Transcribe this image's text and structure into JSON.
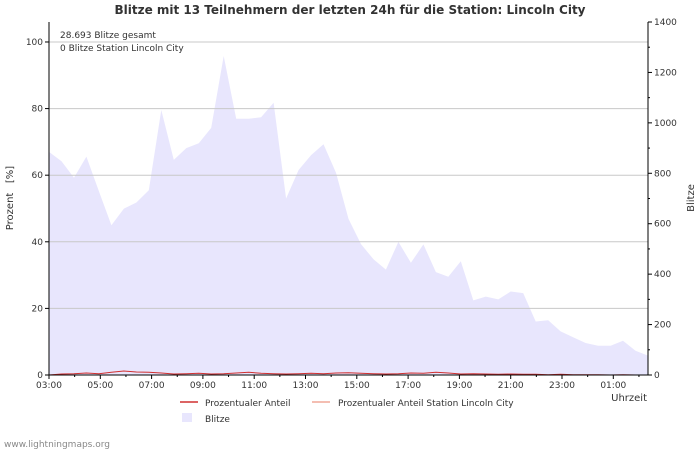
{
  "chart_data": {
    "type": "area",
    "title": "Blitze mit 13 Teilnehmern der letzten 24h für die Station: Lincoln City",
    "annotations": [
      "28.693 Blitze gesamt",
      "0 Blitze Station Lincoln City"
    ],
    "ylabel_left": "Prozent   [%]",
    "ylabel_right": "Blitze",
    "xlabel": "Uhrzeit",
    "ylim_left": [
      0,
      106
    ],
    "ylim_right": [
      0,
      1400
    ],
    "left_ticks": [
      "0",
      "20",
      "40",
      "60",
      "80",
      "100"
    ],
    "right_ticks": [
      "0",
      "200",
      "400",
      "600",
      "800",
      "1000",
      "1200",
      "1400"
    ],
    "x_ticks": [
      "03:00",
      "05:00",
      "07:00",
      "09:00",
      "11:00",
      "13:00",
      "15:00",
      "17:00",
      "19:00",
      "21:00",
      "23:00",
      "01:00"
    ],
    "x_hours_span": 23.67,
    "legend": [
      "Prozentualer Anteil",
      "Prozentualer Anteil Station Lincoln City",
      "Blitze"
    ],
    "colors": {
      "blitze_fill": "#e8e6fd",
      "anteil_line": "#d03030",
      "station_line": "#f0a898",
      "grid": "#c8c8c8",
      "axis": "#000000",
      "text": "#333333"
    },
    "series": [
      {
        "name": "Blitze",
        "axis": "right",
        "values": [
          885,
          848,
          782,
          866,
          729,
          594,
          660,
          684,
          733,
          1051,
          853,
          900,
          919,
          980,
          1265,
          1016,
          1016,
          1022,
          1080,
          700,
          813,
          872,
          915,
          802,
          619,
          519,
          459,
          418,
          528,
          445,
          518,
          408,
          390,
          451,
          296,
          311,
          300,
          331,
          325,
          212,
          217,
          173,
          150,
          127,
          116,
          116,
          136,
          96,
          77
        ]
      },
      {
        "name": "Prozentualer Anteil",
        "axis": "left",
        "values": [
          0,
          0.3,
          0.4,
          0.6,
          0.4,
          0.8,
          1.2,
          0.9,
          0.8,
          0.6,
          0.3,
          0.4,
          0.5,
          0.3,
          0.4,
          0.6,
          0.8,
          0.5,
          0.4,
          0.3,
          0.4,
          0.5,
          0.4,
          0.6,
          0.7,
          0.5,
          0.4,
          0.3,
          0.4,
          0.6,
          0.5,
          0.8,
          0.6,
          0.3,
          0.4,
          0.3,
          0.2,
          0.3,
          0.2,
          0.2,
          0.1,
          0.2,
          0.1,
          0.1,
          0.1,
          0,
          0.1,
          0,
          0
        ]
      },
      {
        "name": "Prozentualer Anteil Station Lincoln City",
        "axis": "left",
        "values": [
          0,
          0,
          0,
          0,
          0,
          0,
          0,
          0,
          0,
          0,
          0,
          0,
          0,
          0,
          0,
          0,
          0,
          0,
          0,
          0,
          0,
          0,
          0,
          0,
          0,
          0,
          0,
          0,
          0,
          0,
          0,
          0,
          0,
          0,
          0,
          0,
          0,
          0,
          0,
          0,
          0,
          0,
          0,
          0,
          0,
          0,
          0,
          0,
          0
        ]
      }
    ]
  },
  "footer": {
    "watermark": "www.lightningmaps.org"
  }
}
